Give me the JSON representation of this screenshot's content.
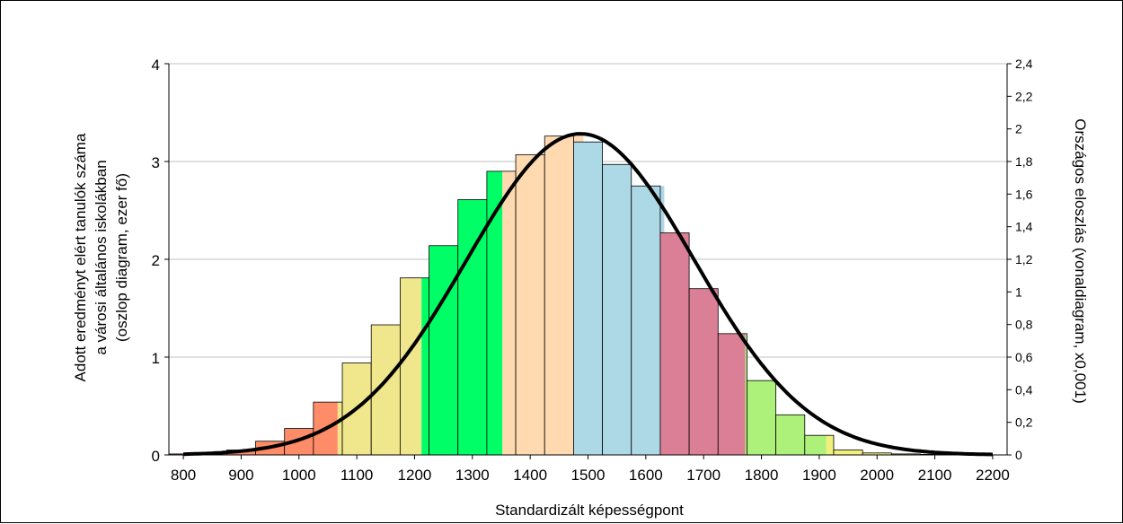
{
  "chart_data": {
    "type": "bar",
    "xlabel": "Standardizált képességpont",
    "ylabel_lines": [
      "Adott eredményt elért tanulók száma",
      "a városi általános iskolákban",
      "(oszlop diagram, ezer fő)"
    ],
    "y2label": "Országos eloszlás (vonaldiagram, x0,001)",
    "xlim": [
      775,
      2225
    ],
    "ylim": [
      0,
      4
    ],
    "y2lim": [
      0,
      2.4
    ],
    "x_ticks": [
      800,
      900,
      1000,
      1100,
      1200,
      1300,
      1400,
      1500,
      1600,
      1700,
      1800,
      1900,
      2000,
      2100,
      2200
    ],
    "x_tick_labels": [
      "800",
      "900",
      "1000",
      "1100",
      "1200",
      "1300",
      "1400",
      "1500",
      "1600",
      "1700",
      "1800",
      "1900",
      "2000",
      "2100",
      "2200"
    ],
    "y_ticks": [
      0,
      1,
      2,
      3,
      4
    ],
    "y_tick_labels": [
      "0",
      "1",
      "2",
      "3",
      "4"
    ],
    "y2_ticks": [
      0,
      0.2,
      0.4,
      0.6,
      0.8,
      1,
      1.2,
      1.4,
      1.6,
      1.8,
      2,
      2.2,
      2.4
    ],
    "y2_tick_labels": [
      "0",
      "0,2",
      "0,4",
      "0,6",
      "0,8",
      "1",
      "1,2",
      "1,4",
      "1,6",
      "1,8",
      "2",
      "2,2",
      "2,4"
    ],
    "grid": true,
    "bar_width": 50,
    "bars": [
      {
        "x": 800,
        "value": 0.01,
        "fill": "#ff8c69"
      },
      {
        "x": 850,
        "value": 0.02,
        "fill": "#ff8c69"
      },
      {
        "x": 900,
        "value": 0.05,
        "fill": "#ff8c69"
      },
      {
        "x": 950,
        "value": 0.14,
        "fill": "#ff8c69"
      },
      {
        "x": 1000,
        "value": 0.27,
        "fill": "#ff8c69"
      },
      {
        "x": 1050,
        "value": 0.54,
        "fill": "#ff8c69",
        "split_at": 1067,
        "fill2": "#f0e68c"
      },
      {
        "x": 1100,
        "value": 0.94,
        "fill": "#f0e68c"
      },
      {
        "x": 1150,
        "value": 1.33,
        "fill": "#f0e68c"
      },
      {
        "x": 1200,
        "value": 1.81,
        "fill": "#f0e68c",
        "split_at": 1212,
        "fill2": "#00ff66"
      },
      {
        "x": 1250,
        "value": 2.14,
        "fill": "#00ff66"
      },
      {
        "x": 1300,
        "value": 2.61,
        "fill": "#00ff66"
      },
      {
        "x": 1350,
        "value": 2.9,
        "fill": "#00ff66",
        "split_at": 1352,
        "fill2": "#ffdab0"
      },
      {
        "x": 1400,
        "value": 3.07,
        "fill": "#ffdab0"
      },
      {
        "x": 1450,
        "value": 3.26,
        "fill": "#ffdab0",
        "split_at": 1492,
        "fill2": "#add8e6"
      },
      {
        "x": 1500,
        "value": 3.2,
        "fill": "#add8e6"
      },
      {
        "x": 1550,
        "value": 2.97,
        "fill": "#add8e6"
      },
      {
        "x": 1600,
        "value": 2.75,
        "fill": "#add8e6",
        "split_at": 1632,
        "fill2": "#db7f96"
      },
      {
        "x": 1650,
        "value": 2.27,
        "fill": "#db7f96"
      },
      {
        "x": 1700,
        "value": 1.7,
        "fill": "#db7f96"
      },
      {
        "x": 1750,
        "value": 1.24,
        "fill": "#db7f96",
        "split_at": 1772,
        "fill2": "#adf07a"
      },
      {
        "x": 1800,
        "value": 0.76,
        "fill": "#adf07a"
      },
      {
        "x": 1850,
        "value": 0.41,
        "fill": "#adf07a"
      },
      {
        "x": 1900,
        "value": 0.2,
        "fill": "#adf07a",
        "split_at": 1912,
        "fill2": "#f0f07a"
      },
      {
        "x": 1950,
        "value": 0.05,
        "fill": "#f0f07a"
      },
      {
        "x": 2000,
        "value": 0.02,
        "fill": "#f0f07a"
      },
      {
        "x": 2050,
        "value": 0.01,
        "fill": "#f0f07a"
      },
      {
        "x": 2100,
        "value": 0.005,
        "fill": "#f0f07a"
      },
      {
        "x": 2150,
        "value": 0.003,
        "fill": "#f0f07a"
      }
    ],
    "line": {
      "axis": "y2",
      "shape": "normal",
      "mean": 1487,
      "sd": 197,
      "peak": 1.97,
      "x_range": [
        800,
        2200
      ],
      "color": "#000000"
    }
  }
}
